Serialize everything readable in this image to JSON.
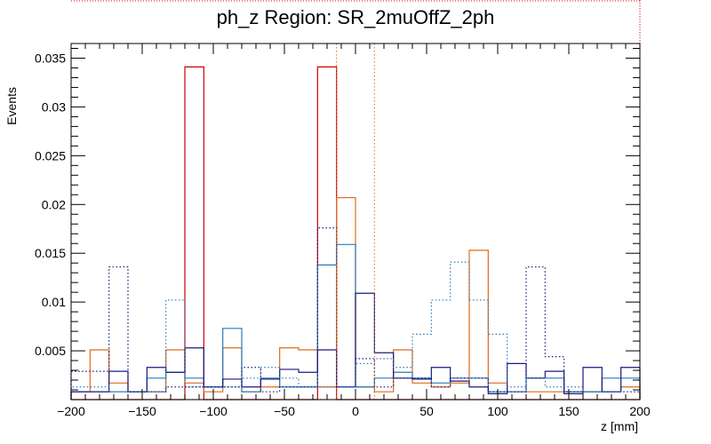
{
  "chart_data": {
    "type": "histogram",
    "title": "ph_z Region: SR_2muOffZ_2ph",
    "xlabel": "z [mm]",
    "ylabel": "Events",
    "xlim": [
      -200,
      200
    ],
    "ylim": [
      0,
      0.0365
    ],
    "bin_width": 13.333,
    "grid": false,
    "x_ticks": [
      -200,
      -150,
      -100,
      -50,
      0,
      50,
      100,
      150,
      200
    ],
    "x_tick_labels": [
      "−200",
      "−150",
      "−100",
      "−50",
      "0",
      "50",
      "100",
      "150",
      "200"
    ],
    "y_ticks": [
      0.005,
      0.01,
      0.015,
      0.02,
      0.025,
      0.03,
      0.035
    ],
    "y_tick_labels": [
      "0.005",
      "0.01",
      "0.015",
      "0.02",
      "0.025",
      "0.03",
      "0.035"
    ],
    "series": [
      {
        "color": "#cc0000",
        "style": "solid",
        "values": [
          0,
          0,
          0,
          0,
          0,
          0,
          0.0341,
          0,
          0,
          0,
          0,
          0,
          0,
          0.0341,
          0,
          0,
          0,
          0,
          0,
          0,
          0,
          0,
          0,
          0,
          0,
          0,
          0,
          0,
          0,
          0
        ]
      },
      {
        "color": "#e06a1a",
        "style": "solid",
        "values": [
          0.0008,
          0.0051,
          0.0017,
          0.0008,
          0.0008,
          0.0051,
          0.0017,
          0.0008,
          0.0053,
          0.0008,
          0.0013,
          0.0053,
          0.0051,
          0.0013,
          0.0207,
          0.0013,
          0.0008,
          0.0051,
          0.0017,
          0.0013,
          0.0017,
          0.0153,
          0.0017,
          0.0008,
          0.0008,
          0.0008,
          0.0008,
          0.0008,
          0.0008,
          0.0013
        ]
      },
      {
        "color": "#2a7ab8",
        "style": "solid",
        "values": [
          0.0008,
          0.0008,
          0.0008,
          0.0008,
          0.0022,
          0.0028,
          0.0022,
          0.0013,
          0.0073,
          0.0008,
          0.0022,
          0.0013,
          0.0013,
          0.0138,
          0.0159,
          0.0013,
          0.0022,
          0.0028,
          0.0022,
          0.0017,
          0.0022,
          0.0022,
          0.0008,
          0.0008,
          0.0022,
          0.0022,
          0.0008,
          0.0008,
          0.0022,
          0.0022
        ]
      },
      {
        "color": "#1a1a80",
        "style": "solid",
        "values": [
          0.0008,
          0.0008,
          0.0029,
          0.0008,
          0.0033,
          0.0028,
          0.0053,
          0.0013,
          0.0021,
          0.0013,
          0.0021,
          0.0031,
          0.0028,
          0.0051,
          0.0013,
          0.0109,
          0.0048,
          0.0022,
          0.0021,
          0.0033,
          0.0019,
          0.0013,
          0.0006,
          0.0037,
          0.0022,
          0.0029,
          0.0006,
          0.0033,
          0.0008,
          0.0033
        ]
      },
      {
        "color": "#1a1a80",
        "style": "dotted",
        "values": [
          0.0029,
          0.0029,
          0.0136,
          0.0008,
          0.0008,
          0.0013,
          0.0013,
          0.0013,
          0.0013,
          0.0033,
          0.0008,
          0.0013,
          0.0013,
          0.0176,
          0.0013,
          0.0042,
          0.0013,
          0.0022,
          0.0022,
          0.0013,
          0.0022,
          0.0022,
          0.0008,
          0.0008,
          0.0136,
          0.0044,
          0.0008,
          0.0008,
          0.0008,
          0.0008
        ]
      },
      {
        "color": "#2a7ab8",
        "style": "dotted",
        "values": [
          0.0013,
          0.0013,
          0.0008,
          0.0008,
          0.0008,
          0.0102,
          0.0013,
          0.0013,
          0.0013,
          0.0022,
          0.0033,
          0.0022,
          0.0013,
          0.0013,
          0.0013,
          0.0037,
          0.0042,
          0.0033,
          0.0067,
          0.0102,
          0.0141,
          0.0102,
          0.0067,
          0.0013,
          0.0022,
          0.0013,
          0.0013,
          0.0008,
          0.0008,
          0.0008
        ]
      },
      {
        "color": "#e06a1a",
        "style": "dotted",
        "values": [
          0,
          0,
          0,
          0,
          0,
          0,
          0,
          0,
          0,
          0,
          0,
          0,
          0,
          0,
          0,
          0,
          0,
          0,
          0,
          0,
          0,
          0,
          0,
          0,
          0,
          0,
          0,
          0,
          0,
          0
        ]
      }
    ]
  }
}
